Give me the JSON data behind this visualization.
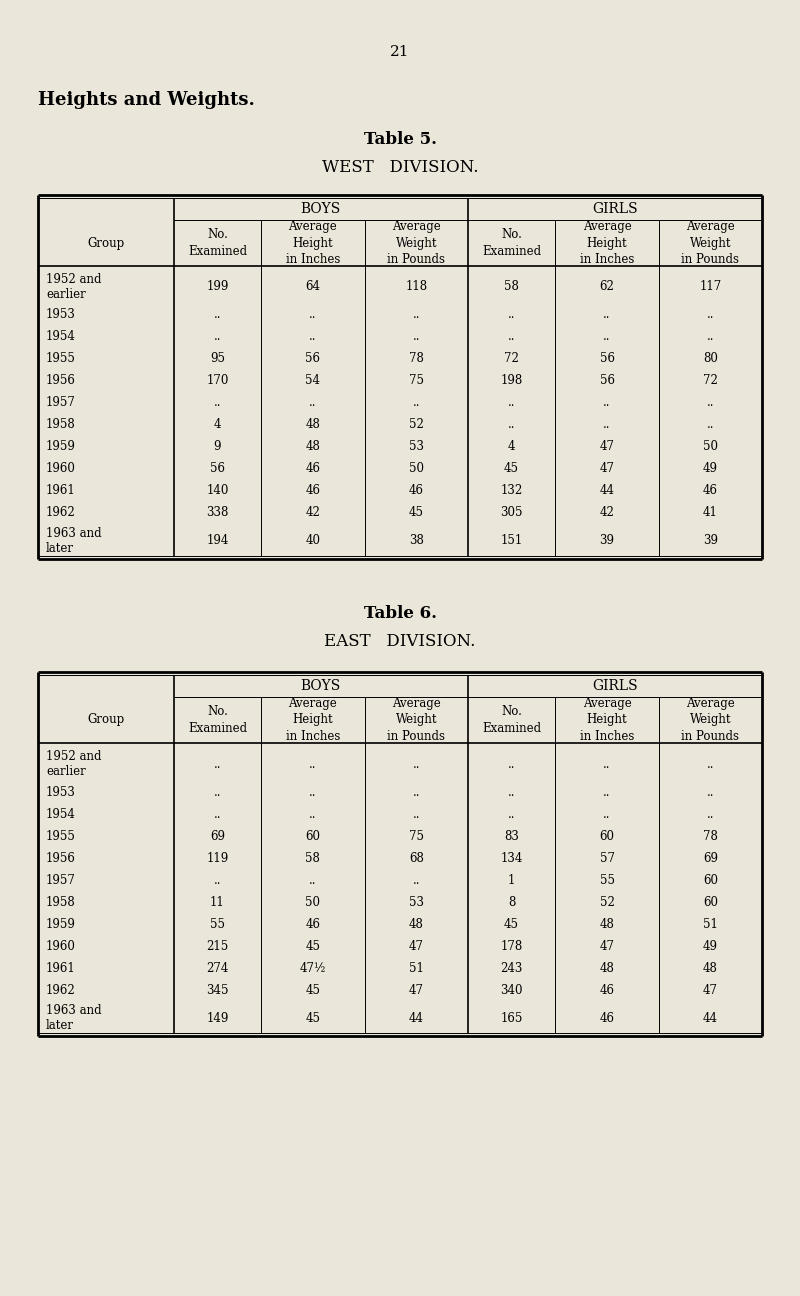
{
  "page_number": "21",
  "main_title": "Heights and Weights.",
  "bg_color": "#eae6d9",
  "table5": {
    "title": "Table 5.",
    "subtitle": "WEST   DIVISION.",
    "boys_header": "BOYS",
    "girls_header": "GIRLS",
    "col_headers_group": "Group",
    "col_headers_b1": "No.\nExamined",
    "col_headers_b2": "Average\nHeight\nin Inches",
    "col_headers_b3": "Average\nWeight\nin Pounds",
    "col_headers_g1": "No.\nExamined",
    "col_headers_g2": "Average\nHeight\nin Inches",
    "col_headers_g3": "Average\nWeight\nin Pounds",
    "rows": [
      [
        "1952 and\nearlier",
        "199",
        "64",
        "118",
        "58",
        "62",
        "117"
      ],
      [
        "1953",
        "..",
        "..",
        "..",
        "..",
        "..",
        ".."
      ],
      [
        "1954",
        "..",
        "..",
        "..",
        "..",
        "..",
        ".."
      ],
      [
        "1955",
        "95",
        "56",
        "78",
        "72",
        "56",
        "80"
      ],
      [
        "1956",
        "170",
        "54",
        "75",
        "198",
        "56",
        "72"
      ],
      [
        "1957",
        "..",
        "..",
        "..",
        "..",
        "..",
        ".."
      ],
      [
        "1958",
        "4",
        "48",
        "52",
        "..",
        "..",
        ".."
      ],
      [
        "1959",
        "9",
        "48",
        "53",
        "4",
        "47",
        "50"
      ],
      [
        "1960",
        "56",
        "46",
        "50",
        "45",
        "47",
        "49"
      ],
      [
        "1961",
        "140",
        "46",
        "46",
        "132",
        "44",
        "46"
      ],
      [
        "1962",
        "338",
        "42",
        "45",
        "305",
        "42",
        "41"
      ],
      [
        "1963 and\nlater",
        "194",
        "40",
        "38",
        "151",
        "39",
        "39"
      ]
    ]
  },
  "table6": {
    "title": "Table 6.",
    "subtitle": "EAST   DIVISION.",
    "boys_header": "BOYS",
    "girls_header": "GIRLS",
    "col_headers_group": "Group",
    "col_headers_b1": "No.\nExamined",
    "col_headers_b2": "Average\nHeight\nin Inches",
    "col_headers_b3": "Average\nWeight\nin Pounds",
    "col_headers_g1": "No.\nExamined",
    "col_headers_g2": "Average\nHeight\nin Inches",
    "col_headers_g3": "Average\nWeight\nin Pounds",
    "rows": [
      [
        "1952 and\nearlier",
        "..",
        "..",
        "..",
        "..",
        "..",
        ".."
      ],
      [
        "1953",
        "..",
        "..",
        "..",
        "..",
        "..",
        ".."
      ],
      [
        "1954",
        "..",
        "..",
        "..",
        "..",
        "..",
        ".."
      ],
      [
        "1955",
        "69",
        "60",
        "75",
        "83",
        "60",
        "78"
      ],
      [
        "1956",
        "119",
        "58",
        "68",
        "134",
        "57",
        "69"
      ],
      [
        "1957",
        "..",
        "..",
        "..",
        "1",
        "55",
        "60"
      ],
      [
        "1958",
        "11",
        "50",
        "53",
        "8",
        "52",
        "60"
      ],
      [
        "1959",
        "55",
        "46",
        "48",
        "45",
        "48",
        "51"
      ],
      [
        "1960",
        "215",
        "45",
        "47",
        "178",
        "47",
        "49"
      ],
      [
        "1961",
        "274",
        "47½",
        "51",
        "243",
        "48",
        "48"
      ],
      [
        "1962",
        "345",
        "45",
        "47",
        "340",
        "46",
        "47"
      ],
      [
        "1963 and\nlater",
        "149",
        "45",
        "44",
        "165",
        "46",
        "44"
      ]
    ]
  }
}
